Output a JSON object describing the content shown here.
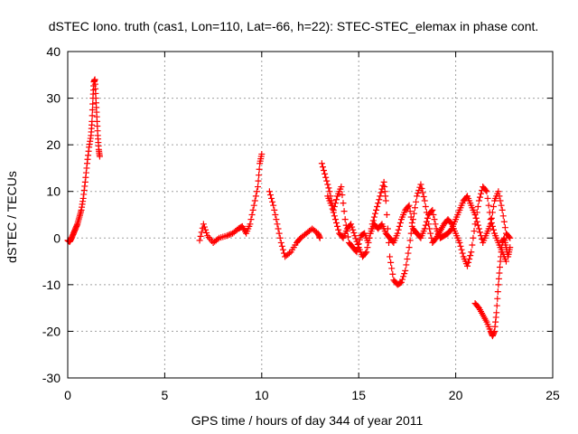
{
  "chart_data": {
    "type": "scatter",
    "title": "dSTEC Iono. truth (cas1, Lon=110, Lat=-66, h=22): STEC-STEC_elemax in phase cont.",
    "xlabel": "GPS time / hours of day 344 of year 2011",
    "ylabel": "dSTEC  / TECUs",
    "xlim": [
      0,
      25
    ],
    "ylim": [
      -30,
      40
    ],
    "xticks": [
      0,
      5,
      10,
      15,
      20,
      25
    ],
    "yticks": [
      -30,
      -20,
      -10,
      0,
      10,
      20,
      30,
      40
    ],
    "grid": true,
    "marker": "+",
    "marker_color": "#ff0000",
    "series": [
      {
        "name": "dSTEC",
        "segments": [
          [
            [
              0.0,
              -0.5
            ],
            [
              0.1,
              -0.8
            ],
            [
              0.2,
              0.0
            ],
            [
              0.3,
              1.0
            ],
            [
              0.4,
              2.0
            ],
            [
              0.5,
              3.0
            ],
            [
              0.6,
              4.5
            ],
            [
              0.7,
              6.0
            ],
            [
              0.8,
              8.5
            ],
            [
              0.9,
              12.0
            ],
            [
              1.0,
              16.0
            ],
            [
              1.1,
              19.5
            ],
            [
              1.2,
              22.0
            ],
            [
              1.25,
              25.0
            ],
            [
              1.3,
              30.0
            ],
            [
              1.35,
              33.5
            ],
            [
              1.4,
              34.0
            ],
            [
              1.45,
              30.0
            ],
            [
              1.5,
              26.0
            ],
            [
              1.55,
              22.0
            ],
            [
              1.6,
              19.0
            ],
            [
              1.65,
              17.5
            ]
          ],
          [
            [
              6.8,
              -0.5
            ],
            [
              7.0,
              3.0
            ],
            [
              7.2,
              0.5
            ],
            [
              7.5,
              -1.0
            ],
            [
              7.8,
              0.0
            ],
            [
              8.2,
              0.5
            ],
            [
              8.5,
              1.0
            ],
            [
              8.8,
              2.0
            ],
            [
              9.0,
              2.5
            ],
            [
              9.2,
              1.0
            ],
            [
              9.4,
              3.0
            ],
            [
              9.6,
              7.0
            ],
            [
              9.8,
              11.0
            ],
            [
              9.9,
              16.0
            ],
            [
              10.0,
              18.0
            ]
          ],
          [
            [
              10.4,
              10.0
            ],
            [
              10.6,
              7.0
            ],
            [
              10.8,
              3.0
            ],
            [
              11.0,
              -1.0
            ],
            [
              11.2,
              -4.0
            ],
            [
              11.5,
              -3.0
            ],
            [
              11.8,
              -1.0
            ],
            [
              12.0,
              0.0
            ],
            [
              12.3,
              1.0
            ],
            [
              12.6,
              2.0
            ],
            [
              12.9,
              1.0
            ],
            [
              13.0,
              0.0
            ]
          ],
          [
            [
              13.1,
              16.0
            ],
            [
              13.3,
              13.0
            ],
            [
              13.5,
              10.0
            ],
            [
              13.7,
              6.0
            ],
            [
              13.9,
              9.0
            ],
            [
              14.1,
              11.0
            ],
            [
              14.3,
              4.0
            ],
            [
              14.5,
              -1.0
            ],
            [
              14.7,
              -2.0
            ],
            [
              14.9,
              -3.0
            ],
            [
              15.1,
              0.5
            ],
            [
              15.3,
              1.0
            ],
            [
              15.5,
              -1.0
            ],
            [
              15.7,
              3.0
            ],
            [
              15.9,
              6.0
            ],
            [
              16.1,
              9.0
            ],
            [
              16.3,
              12.0
            ],
            [
              16.4,
              8.0
            ],
            [
              16.6,
              -4.0
            ],
            [
              16.8,
              -9.0
            ],
            [
              17.0,
              -10.0
            ],
            [
              17.2,
              -9.5
            ],
            [
              17.4,
              -7.0
            ],
            [
              17.6,
              -2.0
            ],
            [
              17.8,
              4.0
            ],
            [
              18.0,
              9.0
            ],
            [
              18.2,
              11.5
            ],
            [
              18.4,
              8.0
            ],
            [
              18.6,
              3.0
            ],
            [
              18.8,
              -1.0
            ],
            [
              19.0,
              0.0
            ],
            [
              19.2,
              1.5
            ],
            [
              19.4,
              3.0
            ],
            [
              19.6,
              4.0
            ],
            [
              19.8,
              3.0
            ],
            [
              20.0,
              1.0
            ],
            [
              20.2,
              -1.0
            ],
            [
              20.4,
              -4.0
            ],
            [
              20.6,
              -6.0
            ],
            [
              20.8,
              -3.0
            ],
            [
              21.0,
              3.0
            ],
            [
              21.2,
              8.0
            ],
            [
              21.4,
              11.0
            ],
            [
              21.6,
              10.0
            ],
            [
              21.8,
              4.0
            ],
            [
              22.0,
              1.0
            ],
            [
              22.2,
              -1.0
            ],
            [
              22.4,
              -3.0
            ],
            [
              22.6,
              -5.0
            ]
          ],
          [
            [
              13.4,
              9.0
            ],
            [
              13.6,
              7.0
            ],
            [
              13.8,
              4.0
            ],
            [
              14.0,
              1.0
            ],
            [
              14.2,
              0.0
            ],
            [
              14.4,
              2.0
            ],
            [
              14.6,
              3.0
            ],
            [
              14.8,
              0.5
            ],
            [
              15.0,
              -2.0
            ],
            [
              15.2,
              -4.0
            ],
            [
              15.4,
              -3.0
            ],
            [
              15.6,
              1.0
            ],
            [
              15.8,
              3.0
            ],
            [
              16.0,
              2.0
            ],
            [
              16.2,
              3.0
            ],
            [
              16.4,
              1.0
            ],
            [
              16.6,
              0.0
            ],
            [
              16.8,
              -1.0
            ],
            [
              17.0,
              1.0
            ],
            [
              17.2,
              4.0
            ],
            [
              17.4,
              6.0
            ],
            [
              17.6,
              7.0
            ],
            [
              17.8,
              2.0
            ],
            [
              18.0,
              1.0
            ],
            [
              18.2,
              0.0
            ],
            [
              18.4,
              2.0
            ],
            [
              18.6,
              5.0
            ],
            [
              18.8,
              6.0
            ],
            [
              19.0,
              2.0
            ],
            [
              19.2,
              0.0
            ],
            [
              19.4,
              0.5
            ],
            [
              19.6,
              1.0
            ],
            [
              19.8,
              2.0
            ],
            [
              20.0,
              4.0
            ],
            [
              20.2,
              6.0
            ],
            [
              20.4,
              8.0
            ],
            [
              20.6,
              9.0
            ],
            [
              20.8,
              7.0
            ],
            [
              21.0,
              5.0
            ],
            [
              21.2,
              2.0
            ],
            [
              21.4,
              -1.0
            ],
            [
              21.6,
              1.0
            ],
            [
              21.8,
              3.0
            ],
            [
              22.0,
              8.0
            ],
            [
              22.2,
              10.0
            ],
            [
              22.4,
              6.0
            ],
            [
              22.6,
              1.0
            ],
            [
              22.8,
              0.0
            ]
          ],
          [
            [
              21.0,
              -14.0
            ],
            [
              21.2,
              -15.0
            ],
            [
              21.4,
              -16.5
            ],
            [
              21.6,
              -18.0
            ],
            [
              21.8,
              -20.0
            ],
            [
              21.9,
              -21.0
            ],
            [
              22.0,
              -20.0
            ],
            [
              22.1,
              -16.0
            ],
            [
              22.2,
              -10.0
            ],
            [
              22.3,
              -5.0
            ],
            [
              22.4,
              -1.0
            ],
            [
              22.5,
              0.0
            ],
            [
              22.6,
              -2.0
            ],
            [
              22.7,
              -4.0
            ],
            [
              22.8,
              -2.0
            ]
          ]
        ]
      }
    ]
  }
}
